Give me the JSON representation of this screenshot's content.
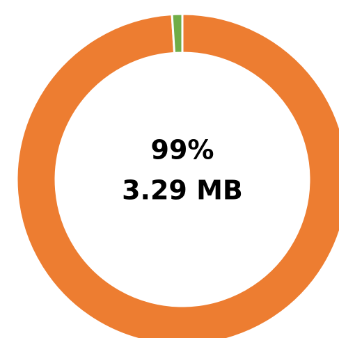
{
  "chart_data": {
    "type": "donut",
    "values": [
      99,
      1
    ],
    "colors": [
      "#ed7d31",
      "#70ad47"
    ],
    "center_text": "99%",
    "center_subtext": "3.29 MB"
  }
}
